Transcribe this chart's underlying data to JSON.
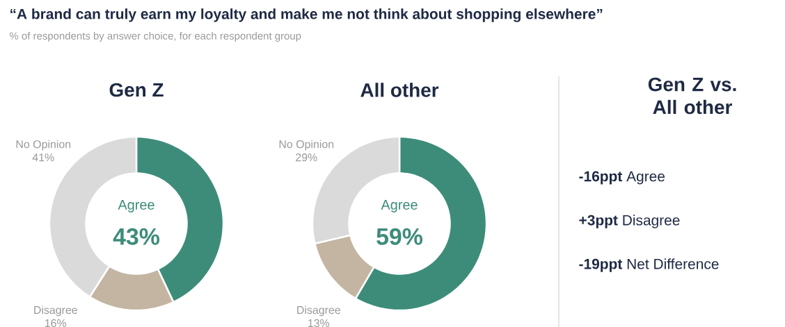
{
  "chart_data": [
    {
      "type": "other",
      "title": "“A brand can truly earn my loyalty and make me not think about shopping elsewhere”",
      "subtitle": "% of respondents by answer choice, for each respondent group"
    },
    {
      "type": "donut",
      "title": "Gen Z",
      "categories": [
        "Agree",
        "Disagree",
        "No Opinion"
      ],
      "values": [
        43,
        16,
        41
      ],
      "value_labels": [
        "43%",
        "16%",
        "41%"
      ],
      "colors": [
        "#3d8c7a",
        "#c4b5a2",
        "#dadada"
      ]
    },
    {
      "type": "donut",
      "title": "All other",
      "categories": [
        "Agree",
        "Disagree",
        "No Opinion"
      ],
      "values": [
        59,
        13,
        29
      ],
      "value_labels": [
        "59%",
        "13%",
        "29%"
      ],
      "colors": [
        "#3d8c7a",
        "#c4b5a2",
        "#dadada"
      ]
    },
    {
      "type": "other",
      "title": "Gen Z vs. All other",
      "annotations": [
        "**-16ppt** Agree",
        "**+3ppt** Disagree",
        "**-19ppt** Net Difference"
      ]
    }
  ]
}
